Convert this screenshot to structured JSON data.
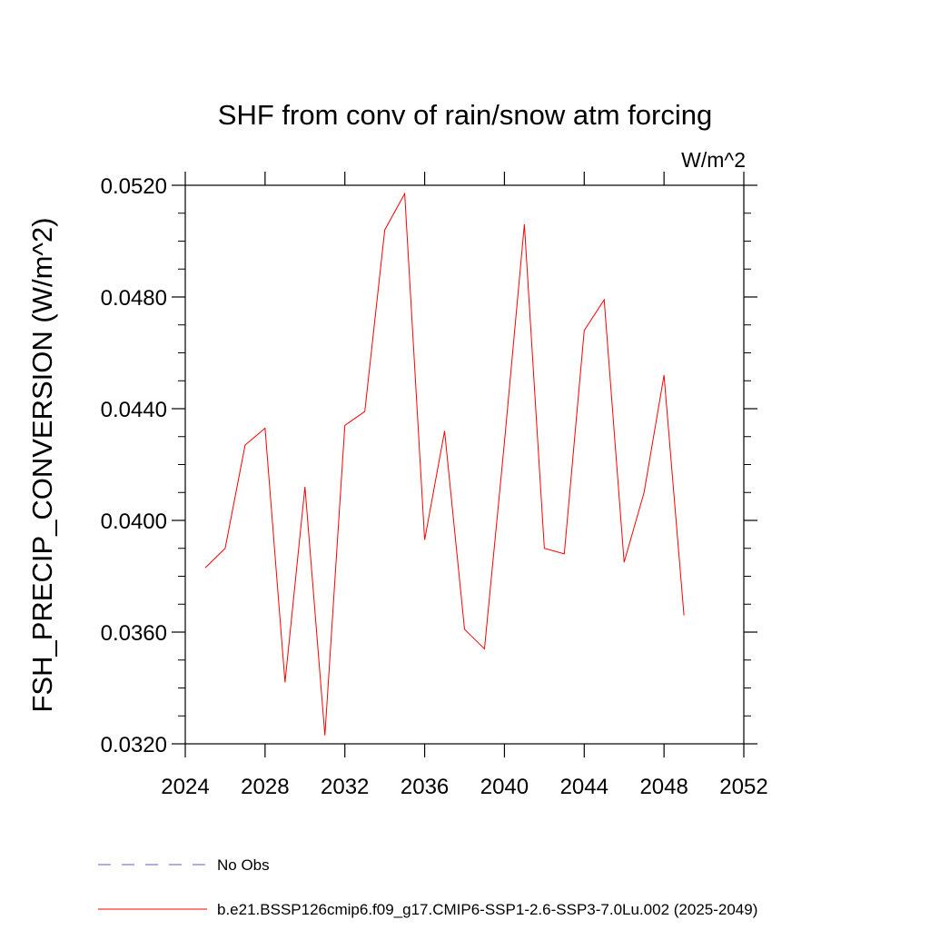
{
  "chart_data": {
    "type": "line",
    "title": "SHF from conv of rain/snow atm forcing",
    "units_label": "W/m^2",
    "ylabel": "FSH_PRECIP_CONVERSION  (W/m^2)",
    "xlabel": "",
    "xlim": [
      2024,
      2052
    ],
    "ylim": [
      0.032,
      0.052
    ],
    "x_ticks": [
      "2024",
      "2028",
      "2032",
      "2036",
      "2040",
      "2044",
      "2048",
      "2052"
    ],
    "y_ticks": [
      "0.0320",
      "0.0360",
      "0.0400",
      "0.0440",
      "0.0480",
      "0.0520"
    ],
    "grid": false,
    "legend_position": "bottom",
    "series": [
      {
        "name": "b.e21.BSSP126cmip6.f09_g17.CMIP6-SSP1-2.6-SSP3-7.0Lu.002 (2025-2049)",
        "color": "#ff0000",
        "dash": "solid",
        "x": [
          2025,
          2026,
          2027,
          2028,
          2029,
          2030,
          2031,
          2032,
          2033,
          2034,
          2035,
          2036,
          2037,
          2038,
          2039,
          2040,
          2041,
          2042,
          2043,
          2044,
          2045,
          2046,
          2047,
          2048,
          2049
        ],
        "y": [
          0.0383,
          0.039,
          0.0427,
          0.0433,
          0.0342,
          0.0412,
          0.0323,
          0.0434,
          0.0439,
          0.0504,
          0.0517,
          0.0393,
          0.0432,
          0.0361,
          0.0354,
          0.0428,
          0.0506,
          0.039,
          0.0388,
          0.0468,
          0.0479,
          0.0385,
          0.041,
          0.0452,
          0.0366
        ]
      }
    ],
    "legend": [
      {
        "label": "No Obs",
        "color": "#6a5acd",
        "dash": "dashed"
      },
      {
        "label": "b.e21.BSSP126cmip6.f09_g17.CMIP6-SSP1-2.6-SSP3-7.0Lu.002 (2025-2049)",
        "color": "#ff0000",
        "dash": "solid"
      }
    ]
  }
}
